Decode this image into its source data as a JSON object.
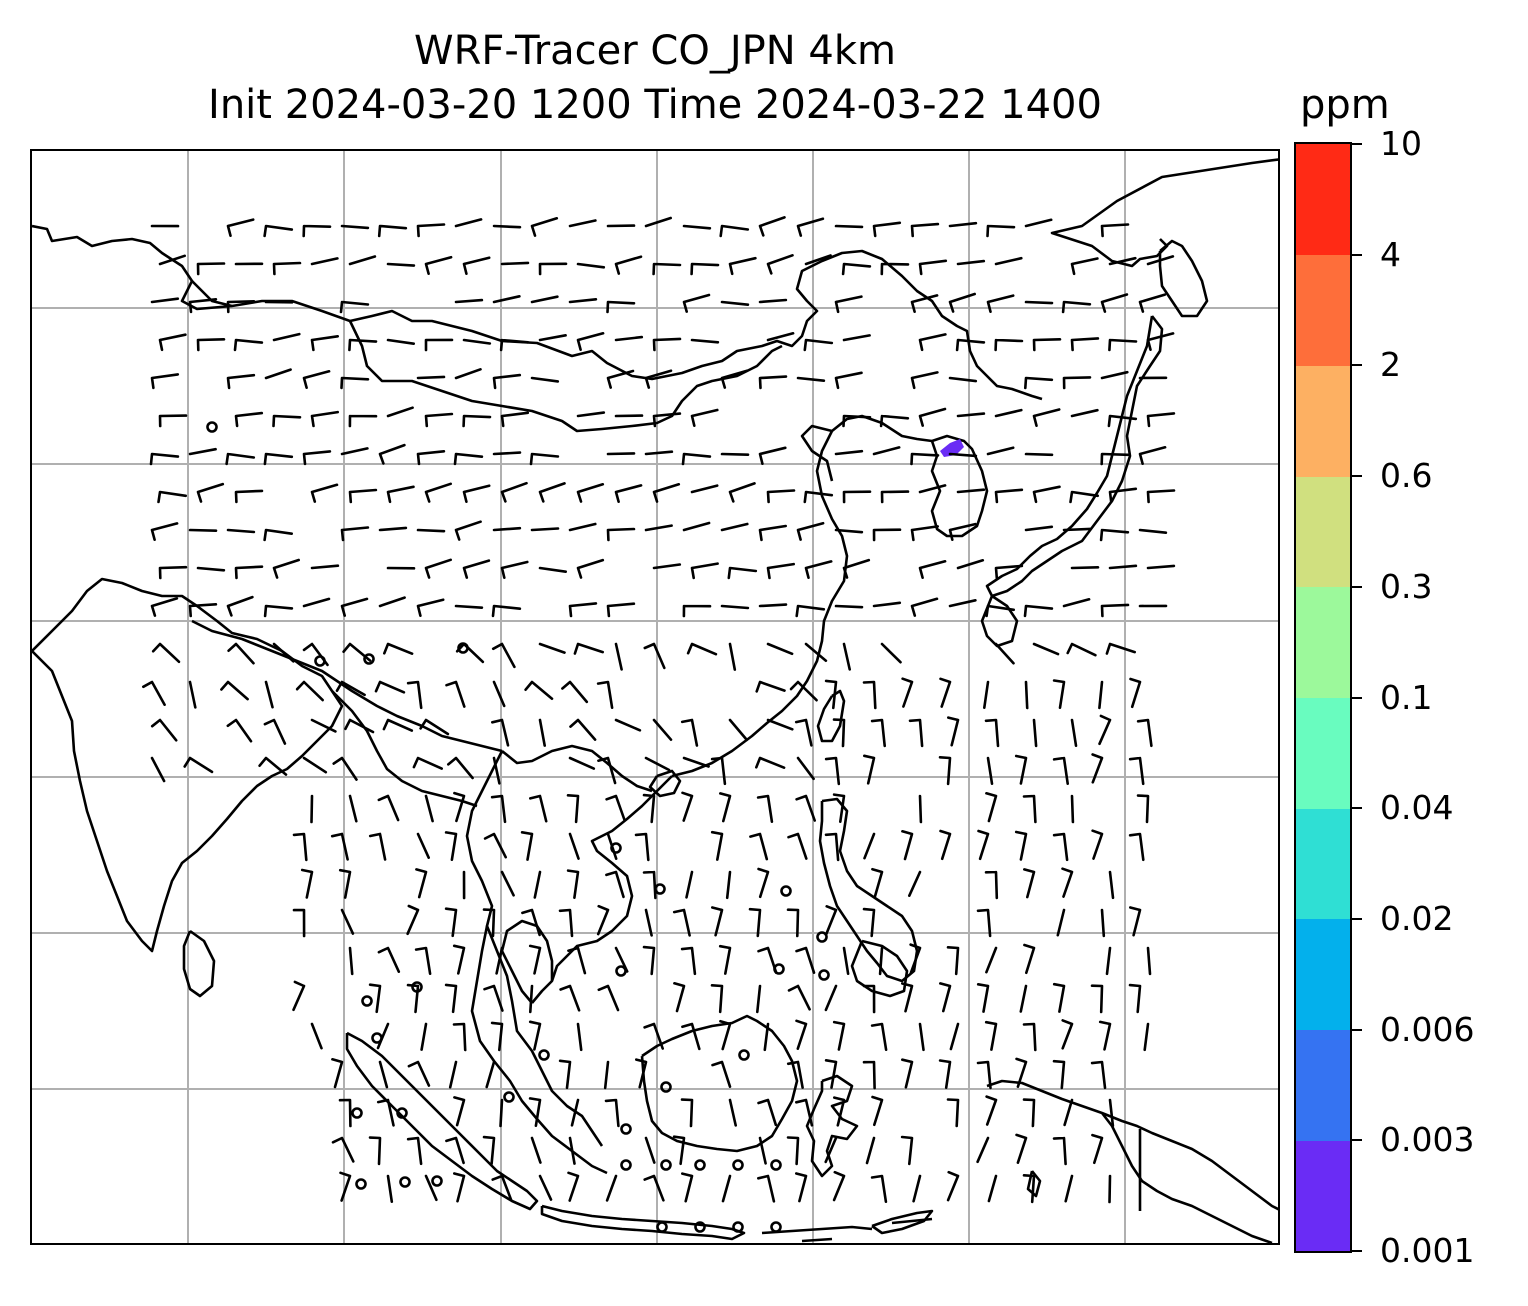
{
  "title": {
    "line1": "WRF-Tracer CO_JPN 4km",
    "line2": "Init 2024-03-20 1200 Time 2024-03-22 1400"
  },
  "colorbar": {
    "unit": "ppm",
    "levels": [
      "0.001",
      "0.003",
      "0.006",
      "0.02",
      "0.04",
      "0.1",
      "0.3",
      "0.6",
      "2",
      "4",
      "10"
    ],
    "colors": [
      "#6a2cf5",
      "#3573f2",
      "#03b0ec",
      "#2fdfd4",
      "#69fcbf",
      "#9cf99b",
      "#d0e07f",
      "#fdb062",
      "#fe6e3a",
      "#ff2a15"
    ]
  },
  "map": {
    "gridline_color": "#b0b0b0",
    "coastline_color": "#000000",
    "plume_color": "#6a2cf5",
    "wind_barbs": "black",
    "calm_symbol": "circle"
  }
}
